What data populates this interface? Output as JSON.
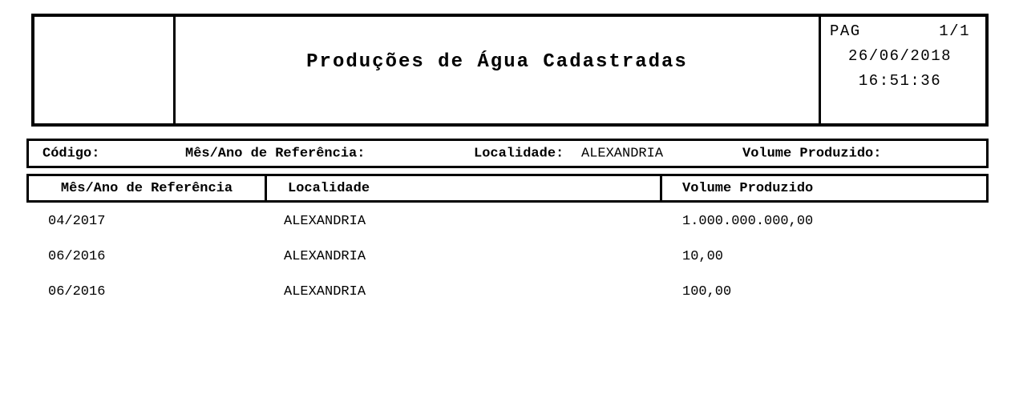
{
  "header": {
    "title": "Produções de Água Cadastradas",
    "page_label": "PAG",
    "page_value": "1/1",
    "date": "26/06/2018",
    "time": "16:51:36"
  },
  "filters": {
    "codigo_label": "Código:",
    "mes_ano_label": "Mês/Ano de Referência:",
    "localidade_label": "Localidade:",
    "localidade_value": "ALEXANDRIA",
    "volume_label": "Volume Produzido:"
  },
  "table": {
    "columns": [
      "Mês/Ano de Referência",
      "Localidade",
      "Volume Produzido"
    ],
    "rows": [
      {
        "mes_ano": "04/2017",
        "localidade": "ALEXANDRIA",
        "volume": "1.000.000.000,00"
      },
      {
        "mes_ano": "06/2016",
        "localidade": "ALEXANDRIA",
        "volume": "10,00"
      },
      {
        "mes_ano": "06/2016",
        "localidade": "ALEXANDRIA",
        "volume": "100,00"
      }
    ]
  },
  "colors": {
    "border": "#000000",
    "background": "#ffffff",
    "text": "#000000"
  }
}
